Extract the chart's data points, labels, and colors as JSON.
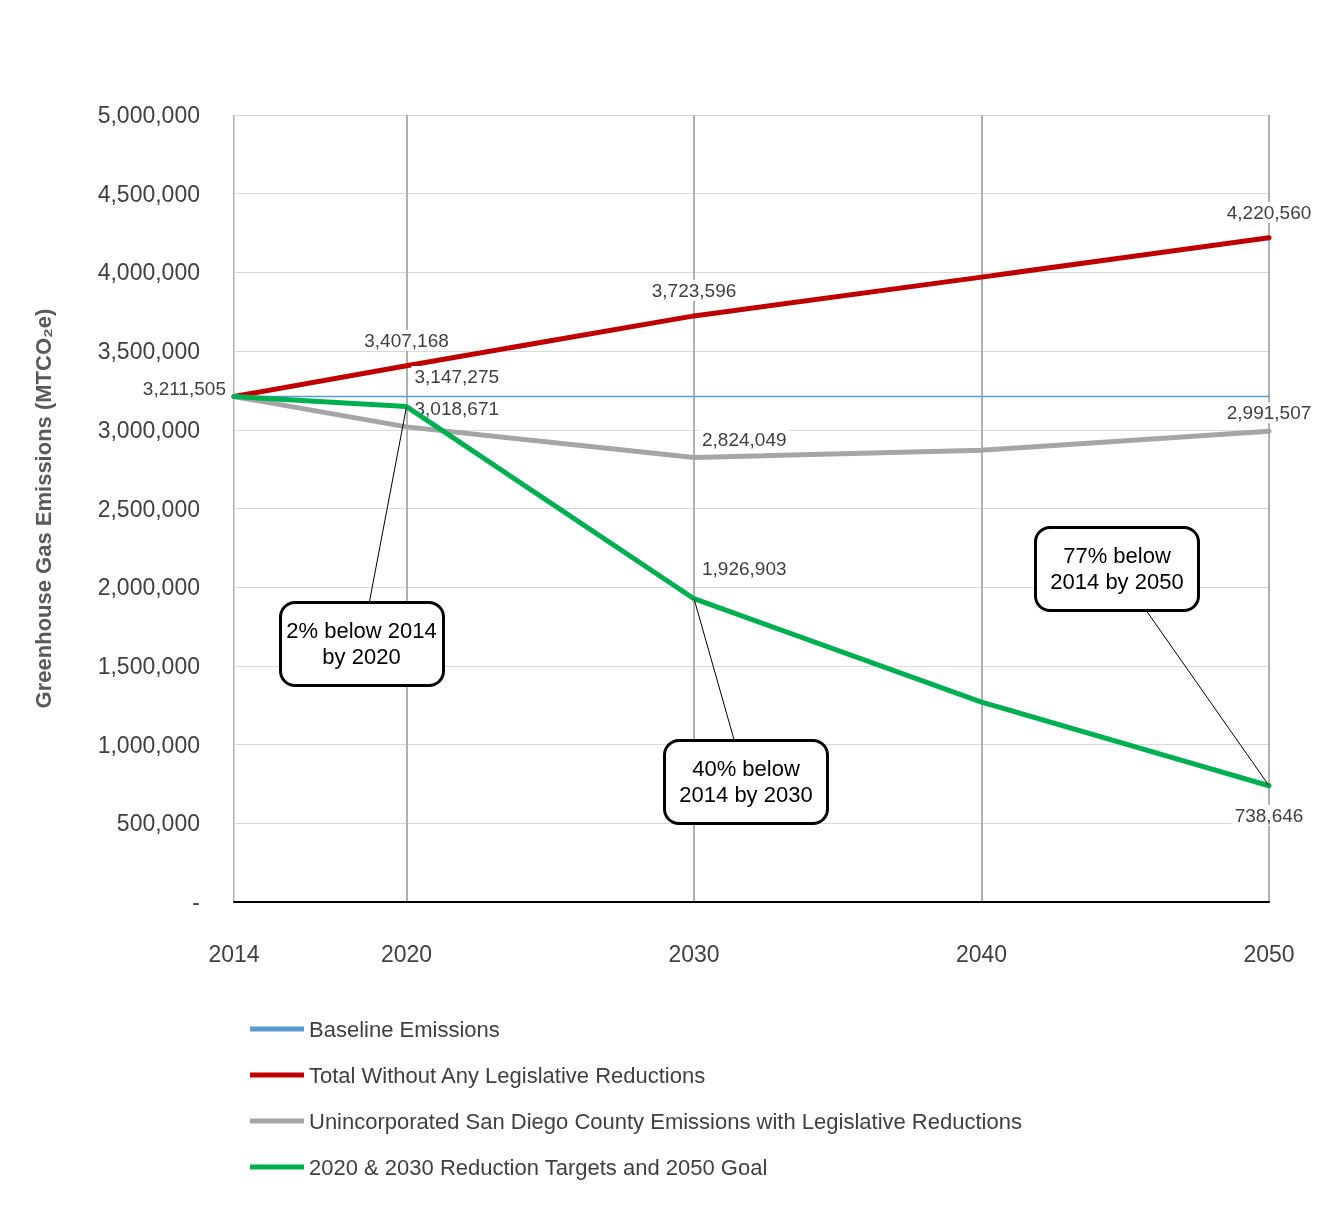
{
  "chart_data": {
    "type": "line",
    "ylabel": "Greenhouse Gas Emissions (MTCO₂e)",
    "x": [
      2014,
      2020,
      2030,
      2040,
      2050
    ],
    "xlim": [
      2014,
      2050
    ],
    "xticks": [
      2014,
      2020,
      2030,
      2040,
      2050
    ],
    "ylim": [
      0,
      5000000
    ],
    "yticks": [
      {
        "value": 0,
        "label": "-"
      },
      {
        "value": 500000,
        "label": "500,000"
      },
      {
        "value": 1000000,
        "label": "1,000,000"
      },
      {
        "value": 1500000,
        "label": "1,500,000"
      },
      {
        "value": 2000000,
        "label": "2,000,000"
      },
      {
        "value": 2500000,
        "label": "2,500,000"
      },
      {
        "value": 3000000,
        "label": "3,000,000"
      },
      {
        "value": 3500000,
        "label": "3,500,000"
      },
      {
        "value": 4000000,
        "label": "4,000,000"
      },
      {
        "value": 4500000,
        "label": "4,500,000"
      },
      {
        "value": 5000000,
        "label": "5,000,000"
      }
    ],
    "series": [
      {
        "name": "Baseline Emissions",
        "color": "#5b9bd5",
        "values": [
          3211505,
          3211505,
          3211505,
          3211505,
          3211505
        ],
        "value_labels": [
          "3,211,505",
          null,
          null,
          null,
          null
        ]
      },
      {
        "name": "Total Without Any Legislative Reductions",
        "color": "#c00000",
        "values": [
          3211505,
          3407168,
          3723596,
          3970000,
          4220560
        ],
        "value_labels": [
          null,
          "3,407,168",
          "3,723,596",
          null,
          "4,220,560"
        ]
      },
      {
        "name": "Unincorporated San Diego County Emissions with Legislative Reductions",
        "color": "#a5a5a5",
        "values": [
          3211505,
          3018671,
          2824049,
          2870000,
          2991507
        ],
        "value_labels": [
          null,
          "3,018,671",
          "2,824,049",
          null,
          "2,991,507"
        ]
      },
      {
        "name": "2020 & 2030 Reduction Targets and 2050 Goal",
        "color": "#00b050",
        "values": [
          3211505,
          3147275,
          1926903,
          1270000,
          738646
        ],
        "value_labels": [
          null,
          "3,147,275",
          "1,926,903",
          null,
          "738,646"
        ]
      }
    ],
    "annotations": [
      {
        "text": "2% below 2014 by 2020",
        "x": 2020,
        "y": 3147275
      },
      {
        "text": "40% below 2014 by 2030",
        "x": 2030,
        "y": 1926903
      },
      {
        "text": "77% below 2014 by 2050",
        "x": 2050,
        "y": 738646
      }
    ],
    "grid": true,
    "legend": "bottom",
    "marker": "none",
    "line_style": "solid"
  }
}
